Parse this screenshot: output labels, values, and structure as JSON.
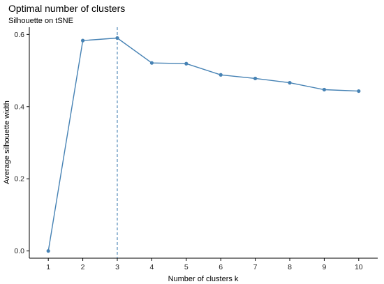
{
  "chart_data": {
    "type": "line",
    "title": "Optimal number of clusters",
    "subtitle": "Silhouette on tSNE",
    "xlabel": "Number of clusters k",
    "ylabel": "Average silhouette width",
    "categories": [
      "1",
      "2",
      "3",
      "4",
      "5",
      "6",
      "7",
      "8",
      "9",
      "10"
    ],
    "x": [
      1,
      2,
      3,
      4,
      5,
      6,
      7,
      8,
      9,
      10
    ],
    "values": [
      0.0,
      0.583,
      0.59,
      0.521,
      0.519,
      0.488,
      0.478,
      0.466,
      0.447,
      0.443
    ],
    "ylim": [
      -0.02,
      0.62
    ],
    "y_ticks": [
      0.0,
      0.2,
      0.4,
      0.6
    ],
    "y_tick_labels": [
      "0.0",
      "0.2",
      "0.4",
      "0.6"
    ],
    "optimal_k": 3,
    "grid": false,
    "legend": "none",
    "colors": {
      "series": "#4682B4",
      "axis": "#000000"
    }
  }
}
